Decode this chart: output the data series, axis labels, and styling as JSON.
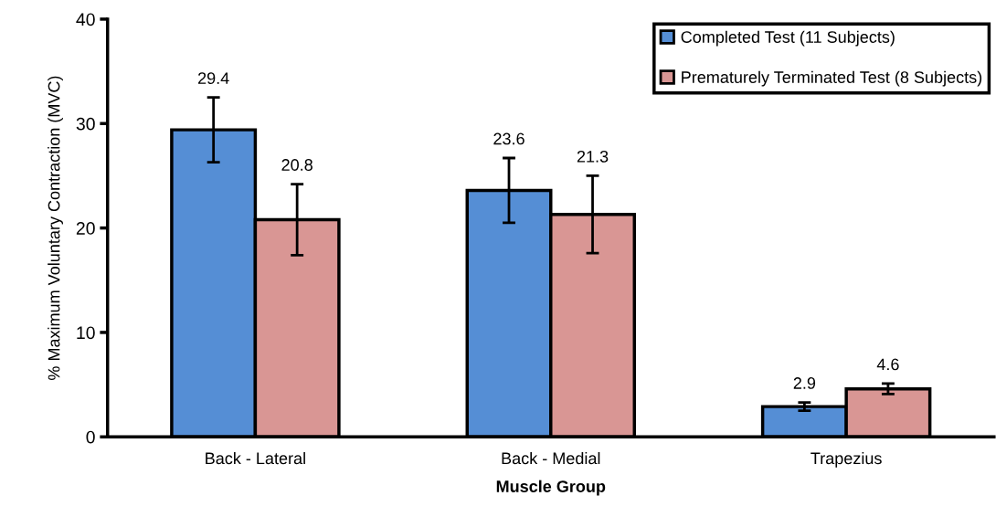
{
  "chart_data": {
    "type": "bar",
    "xlabel": "Muscle Group",
    "ylabel": "% Maximum Voluntary Contraction (MVC)",
    "categories": [
      "Back - Lateral",
      "Back - Medial",
      "Trapezius"
    ],
    "series": [
      {
        "name": "Completed Test (11 Subjects)",
        "color": "#558ed5",
        "values": [
          29.4,
          23.6,
          2.9
        ],
        "errors": [
          3.1,
          3.1,
          0.4
        ]
      },
      {
        "name": "Prematurely Terminated Test (8 Subjects)",
        "color": "#d99694",
        "values": [
          20.8,
          21.3,
          4.6
        ],
        "errors": [
          3.4,
          3.7,
          0.5
        ]
      }
    ],
    "ylim": [
      0,
      40
    ],
    "yticks": [
      0,
      10,
      20,
      30,
      40
    ],
    "data_labels": true,
    "legend": "top right",
    "grid": false
  }
}
